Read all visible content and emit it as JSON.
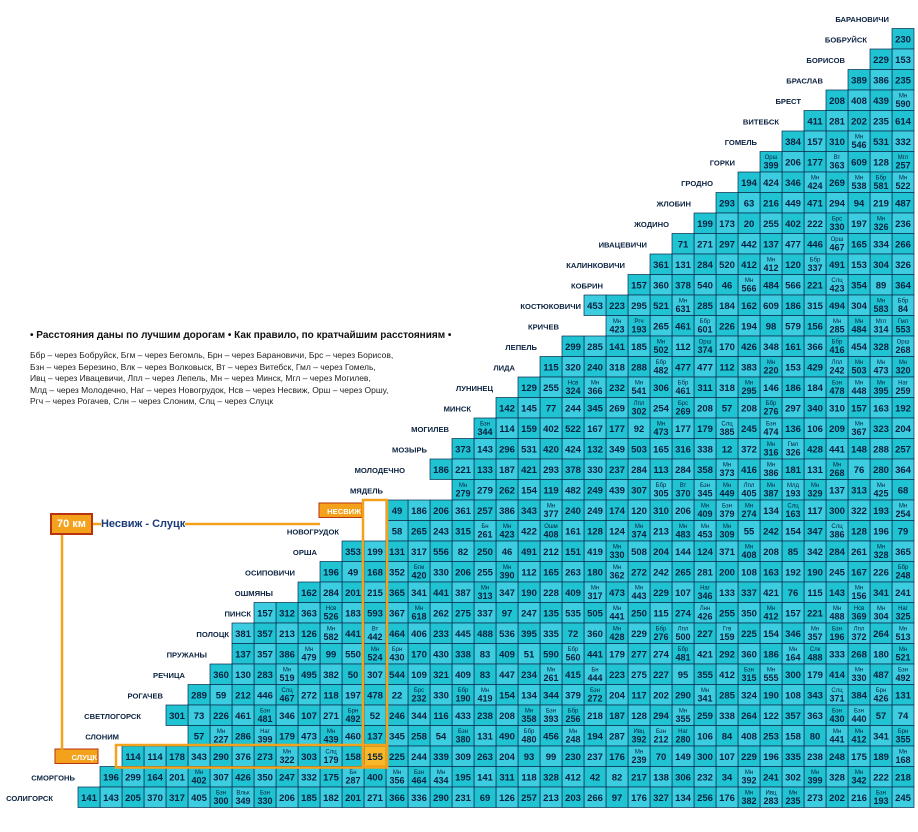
{
  "chart_data": {
    "type": "table",
    "title": "",
    "cities": [
      "БАРАНОВИЧИ",
      "БОБРУЙСК",
      "БОРИСОВ",
      "БРАСЛАВ",
      "БРЕСТ",
      "ВИТЕБСК",
      "ГОМЕЛЬ",
      "ГОРКИ",
      "ГРОДНО",
      "ЖЛОБИН",
      "ЖОДИНО",
      "ИВАЦЕВИЧИ",
      "КАЛИНКОВИЧИ",
      "КОБРИН",
      "КОСТЮКОВИЧИ",
      "КРИЧЕВ",
      "ЛЕПЕЛЬ",
      "ЛИДА",
      "ЛУНИНЕЦ",
      "МИНСК",
      "МОГИЛЕВ",
      "МОЗЫРЬ",
      "МОЛОДЕЧНО",
      "МЯДЕЛЬ",
      "НЕСВИЖ",
      "НОВОГРУДОК",
      "ОРША",
      "ОСИПОВИЧИ",
      "ОШМЯНЫ",
      "ПИНСК",
      "ПОЛОЦК",
      "ПРУЖАНЫ",
      "РЕЧИЦА",
      "РОГАЧЕВ",
      "СВЕТЛОГОРСК",
      "СЛОНИМ",
      "СЛУЦК",
      "СМОРГОНЬ",
      "СОЛИГОРСК"
    ],
    "distances": [
      [
        "230"
      ],
      [
        "153",
        "229"
      ],
      [
        "235",
        "386",
        "389"
      ],
      [
        "Мн 590",
        "439",
        "408",
        "208"
      ],
      [
        "614",
        "235",
        "202",
        "281",
        "411"
      ],
      [
        "332",
        "531",
        "Мн 546",
        "310",
        "157",
        "384"
      ],
      [
        "Мгл 257",
        "128",
        "609",
        "Вт 363",
        "177",
        "206",
        "Орш 399"
      ],
      [
        "Мн 522",
        "Ббр 581",
        "Мн 538",
        "269",
        "Мн 424",
        "346",
        "424",
        "194"
      ],
      [
        "487",
        "219",
        "94",
        "294",
        "471",
        "449",
        "216",
        "63",
        "293"
      ],
      [
        "236",
        "Мн 326",
        "197",
        "Брс 330",
        "222",
        "402",
        "255",
        "20",
        "173",
        "199"
      ],
      [
        "266",
        "334",
        "165",
        "Орш 467",
        "446",
        "477",
        "137",
        "442",
        "297",
        "271",
        "71"
      ],
      [
        "326",
        "304",
        "153",
        "491",
        "Ббр 337",
        "120",
        "Мн 412",
        "412",
        "520",
        "284",
        "131",
        "361"
      ],
      [
        "364",
        "89",
        "354",
        "Слц 423",
        "221",
        "566",
        "484",
        "Мн 566",
        "46",
        "540",
        "378",
        "360",
        "157"
      ],
      [
        "Ббр 84",
        "Мн 583",
        "304",
        "494",
        "315",
        "186",
        "609",
        "162",
        "184",
        "285",
        "Мн 631",
        "521",
        "295",
        "223",
        "453"
      ],
      [
        "Гмл 553",
        "Мгл 314",
        "Мн 484",
        "Мн 285",
        "156",
        "579",
        "98",
        "194",
        "226",
        "Ббр 601",
        "461",
        "265",
        "Ргч 193",
        "Мн 423"
      ],
      [
        "Орш 268",
        "328",
        "454",
        "Ббр 416",
        "366",
        "161",
        "348",
        "426",
        "170",
        "Орш 374",
        "112",
        "Мн 502",
        "185",
        "141",
        "285",
        "299"
      ],
      [
        "Мн 320",
        "Мн 473",
        "Мн 503",
        "Лпл 242",
        "429",
        "153",
        "Мн 220",
        "383",
        "112",
        "477",
        "477",
        "Ббр 482",
        "288",
        "318",
        "240",
        "320",
        "115"
      ],
      [
        "Наг 259",
        "Мн 395",
        "Мн 448",
        "Бзн 478",
        "184",
        "186",
        "146",
        "Мн 295",
        "318",
        "311",
        "Ббр 461",
        "306",
        "Мн 541",
        "232",
        "Мн 366",
        "Нсв 324",
        "255",
        "129"
      ],
      [
        "192",
        "163",
        "157",
        "310",
        "340",
        "297",
        "Ббр 276",
        "208",
        "57",
        "208",
        "Брс 269",
        "254",
        "Лпл 302",
        "269",
        "345",
        "244",
        "77",
        "145",
        "142"
      ],
      [
        "204",
        "323",
        "Мн 367",
        "209",
        "106",
        "136",
        "Бзн 474",
        "245",
        "Слц 385",
        "179",
        "177",
        "Мн 473",
        "92",
        "177",
        "167",
        "522",
        "402",
        "159",
        "114",
        "Бзн 344"
      ],
      [
        "257",
        "288",
        "148",
        "441",
        "428",
        "Гмл 326",
        "Мн 316",
        "372",
        "12",
        "338",
        "316",
        "165",
        "503",
        "349",
        "132",
        "424",
        "420",
        "531",
        "296",
        "143",
        "373"
      ],
      [
        "364",
        "280",
        "76",
        "Мн 268",
        "131",
        "181",
        "Мн 386",
        "416",
        "Мн 373",
        "358",
        "284",
        "113",
        "284",
        "237",
        "330",
        "378",
        "293",
        "421",
        "187",
        "133",
        "221",
        "186"
      ],
      [
        "68",
        "Мн 425",
        "313",
        "137",
        "Мн 329",
        "Млд 193",
        "Мн 387",
        "Лпл 405",
        "Мн 449",
        "Бзн 345",
        "Вт 370",
        "Ббр 305",
        "307",
        "439",
        "249",
        "482",
        "119",
        "154",
        "262",
        "279",
        "Мн 279"
      ],
      [
        "Мн 254",
        "193",
        "322",
        "300",
        "117",
        "Слц 163",
        "134",
        "Мн 274",
        "Бзн 379",
        "Мн 409",
        "206",
        "310",
        "120",
        "174",
        "249",
        "240",
        "Мн 377",
        "343",
        "386",
        "257",
        "361",
        "206",
        "186",
        "49"
      ],
      [
        "79",
        "196",
        "128",
        "Слц 386",
        "347",
        "154",
        "242",
        "55",
        "Мн 309",
        "Мн 453",
        "Мн 483",
        "213",
        "Мн 374",
        "124",
        "128",
        "161",
        "Ошм 408",
        "422",
        "Мн 423",
        "Бн 261",
        "315",
        "243",
        "265",
        "58"
      ],
      [
        "365",
        "Мн 328",
        "261",
        "284",
        "342",
        "85",
        "208",
        "Мн 408",
        "371",
        "124",
        "144",
        "204",
        "508",
        "Мн 330",
        "419",
        "151",
        "212",
        "491",
        "46",
        "250",
        "82",
        "556",
        "317",
        "131",
        "199",
        "353"
      ],
      [
        "Ббр 248",
        "226",
        "167",
        "245",
        "190",
        "192",
        "163",
        "108",
        "200",
        "281",
        "265",
        "242",
        "272",
        "Мн 362",
        "180",
        "263",
        "165",
        "112",
        "Мн 390",
        "255",
        "206",
        "330",
        "Бгм 420",
        "352",
        "168",
        "49",
        "196"
      ],
      [
        "241",
        "341",
        "Мн 156",
        "143",
        "115",
        "76",
        "421",
        "337",
        "133",
        "Наг 346",
        "107",
        "229",
        "Мн 443",
        "473",
        "Мн 317",
        "409",
        "228",
        "190",
        "347",
        "Мн 313",
        "387",
        "441",
        "341",
        "365",
        "215",
        "201",
        "284",
        "162"
      ],
      [
        "Наг 325",
        "Мн 304",
        "Нсв 369",
        "Мн 488",
        "221",
        "157",
        "Мн 412",
        "350",
        "255",
        "Лнн 426",
        "274",
        "115",
        "250",
        "Мн 441",
        "505",
        "535",
        "135",
        "247",
        "97",
        "337",
        "275",
        "262",
        "Мн 618",
        "367",
        "593",
        "183",
        "Нсв 526",
        "363",
        "312",
        "157"
      ],
      [
        "Мн 513",
        "264",
        "Лпл 372",
        "Бзн 196",
        "Мн 357",
        "346",
        "154",
        "225",
        "Ггв 159",
        "227",
        "Лпл 500",
        "Ббр 276",
        "229",
        "Мн 428",
        "360",
        "72",
        "335",
        "395",
        "536",
        "488",
        "445",
        "233",
        "406",
        "464",
        "Вт 442",
        "441",
        "Мн 582",
        "126",
        "213",
        "357",
        "381"
      ],
      [
        "Мн 521",
        "180",
        "268",
        "333",
        "Слк 488",
        "Мн 164",
        "186",
        "360",
        "292",
        "421",
        "Ббр 481",
        "274",
        "277",
        "179",
        "441",
        "Ббр 560",
        "590",
        "51",
        "409",
        "83",
        "338",
        "430",
        "170",
        "Брн 430",
        "Мн 524",
        "550",
        "99",
        "Мн 479",
        "386",
        "357",
        "137"
      ],
      [
        "Бзн 492",
        "487",
        "Мн 330",
        "414",
        "179",
        "300",
        "Мн 555",
        "Бзн 315",
        "412",
        "355",
        "95",
        "227",
        "275",
        "223",
        "Бн 444",
        "415",
        "Мн 261",
        "234",
        "447",
        "83",
        "409",
        "321",
        "109",
        "544",
        "307",
        "50",
        "382",
        "495",
        "Мн 519",
        "283",
        "130",
        "360"
      ],
      [
        "131",
        "Брн 426",
        "384",
        "Слц 371",
        "343",
        "108",
        "190",
        "324",
        "285",
        "Мн 341",
        "290",
        "202",
        "117",
        "204",
        "Бзн 272",
        "379",
        "344",
        "134",
        "154",
        "Мн 419",
        "Ббр 190",
        "330",
        "Брс 232",
        "22",
        "478",
        "197",
        "118",
        "272",
        "Слц 467",
        "446",
        "212",
        "59",
        "289"
      ],
      [
        "74",
        "57",
        "Бзн 440",
        "Бзн 430",
        "363",
        "357",
        "122",
        "264",
        "338",
        "259",
        "Мн 355",
        "294",
        "128",
        "187",
        "218",
        "Ббр 256",
        "Бзн 393",
        "Мн 358",
        "208",
        "238",
        "433",
        "116",
        "344",
        "246",
        "52",
        "Брн 492",
        "271",
        "107",
        "346",
        "Бзн 481",
        "461",
        "226",
        "73",
        "301"
      ],
      [
        "Брн 355",
        "341",
        "Мн 412",
        "Мн 441",
        "80",
        "158",
        "253",
        "408",
        "84",
        "106",
        "Наг 280",
        "Бзн 212",
        "Ивц 392",
        "287",
        "194",
        "Мн 248",
        "456",
        "Ббр 480",
        "490",
        "131",
        "Бзн 380",
        "54",
        "258",
        "345",
        "137",
        "460",
        "Мн 439",
        "473",
        "179",
        "Наг 399",
        "286",
        "Мн 227",
        "57"
      ],
      [
        "Мн 168",
        "189",
        "175",
        "248",
        "238",
        "335",
        "196",
        "229",
        "107",
        "300",
        "149",
        "70",
        "Мн 239",
        "176",
        "237",
        "230",
        "99",
        "93",
        "204",
        "263",
        "309",
        "339",
        "244",
        "225",
        "155",
        "158",
        "Слц 179",
        "303",
        "Мн 322",
        "273",
        "376",
        "290",
        "343",
        "178",
        "114",
        "114"
      ],
      [
        "218",
        "222",
        "Мн 342",
        "328",
        "Мн 399",
        "302",
        "241",
        "Мн 392",
        "34",
        "232",
        "306",
        "138",
        "217",
        "82",
        "42",
        "412",
        "328",
        "118",
        "311",
        "141",
        "195",
        "Мн 434",
        "Бзн 464",
        "Мн 356",
        "400",
        "Бн 287",
        "175",
        "332",
        "247",
        "350",
        "426",
        "307",
        "Мн 402",
        "201",
        "164",
        "299",
        "196"
      ],
      [
        "245",
        "Бзн 193",
        "216",
        "202",
        "273",
        "Мн 235",
        "Ивц 283",
        "Мн 382",
        "176",
        "256",
        "134",
        "327",
        "176",
        "97",
        "266",
        "203",
        "213",
        "257",
        "126",
        "69",
        "231",
        "290",
        "336",
        "366",
        "271",
        "201",
        "182",
        "185",
        "206",
        "Бзн 330",
        "Вльк 349",
        "Бзн 300",
        "405",
        "317",
        "370",
        "205",
        "143",
        "141"
      ]
    ]
  },
  "notes": {
    "heading": "• Расстояния даны по лучшим дорогам • Как правило, по кратчайшим расстояниям •",
    "lines": [
      "Ббр – через Бобруйск, Бгм – через Бегомль, Брн – через Барановичи, Брс – через Борисов,",
      "Бзн – через Березино, Влк – через Волковыск, Вт – через Витебск, Гмл – через Гомель,",
      "Ивц – через Ивацевичи, Лпл – через Лепель, Мн – через Минск, Мгл – через Могилев,",
      "Млд – через Молодечно, Наг – через Новогрудок, Нсв – через Несвиж, Орш – через Оршу,",
      "Ргч – через Рогачев, Слн – через Слоним, Слц – через Слуцк"
    ]
  },
  "callout": {
    "badge": "70 км",
    "text": "Несвиж - Слуцк"
  },
  "colors": {
    "cell": "#1fc3d2",
    "cell_alt": "#ffffff",
    "border": "#0b2a4a",
    "text": "#082040",
    "route": "#f4a11b",
    "highlight": "#f8b82a"
  },
  "highlight": {
    "from": "НЕСВИЖ",
    "to": "СЛУЦК"
  }
}
